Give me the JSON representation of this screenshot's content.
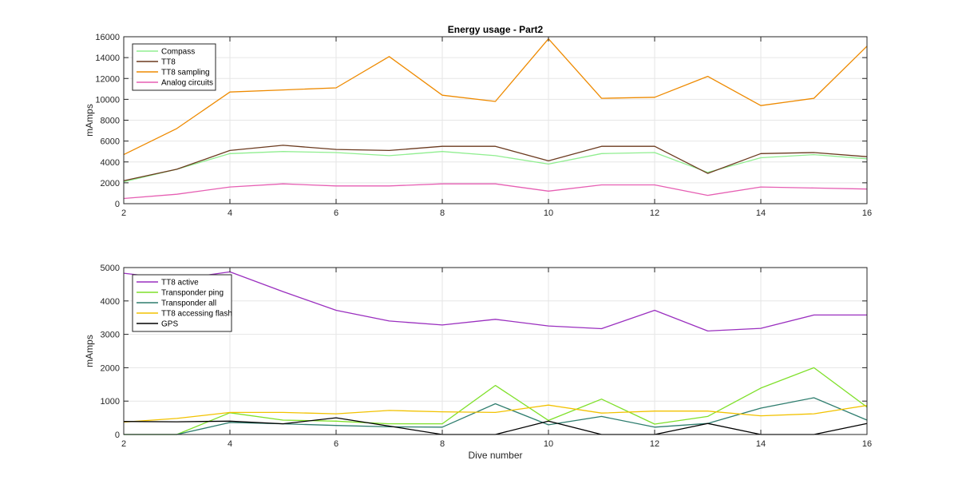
{
  "chart_data": [
    {
      "type": "line",
      "title": "Energy usage - Part2",
      "xlabel": "",
      "ylabel": "mAmps",
      "xlim": [
        2,
        16
      ],
      "ylim": [
        0,
        16000
      ],
      "xticks": [
        2,
        4,
        6,
        8,
        10,
        12,
        14,
        16
      ],
      "yticks": [
        0,
        2000,
        4000,
        6000,
        8000,
        10000,
        12000,
        14000,
        16000
      ],
      "grid": true,
      "legend_position": "top-left",
      "x": [
        2,
        3,
        4,
        5,
        6,
        7,
        8,
        9,
        10,
        11,
        12,
        13,
        14,
        15,
        16
      ],
      "series": [
        {
          "name": "Compass",
          "color": "#90ee90",
          "values": [
            2100,
            3300,
            4800,
            5000,
            4900,
            4600,
            5000,
            4600,
            3800,
            4800,
            4900,
            3000,
            4400,
            4700,
            4300
          ]
        },
        {
          "name": "TT8",
          "color": "#6b3a1f",
          "values": [
            2200,
            3300,
            5100,
            5600,
            5200,
            5100,
            5500,
            5500,
            4100,
            5500,
            5500,
            2900,
            4800,
            4900,
            4500
          ]
        },
        {
          "name": "TT8 sampling",
          "color": "#ee8a00",
          "values": [
            4700,
            7200,
            10700,
            10900,
            11100,
            14100,
            10400,
            9800,
            15800,
            10100,
            10200,
            12200,
            9400,
            10100,
            15100
          ]
        },
        {
          "name": "Analog circuits",
          "color": "#e65fb3",
          "values": [
            500,
            900,
            1600,
            1900,
            1700,
            1700,
            1900,
            1900,
            1200,
            1800,
            1800,
            800,
            1600,
            1500,
            1400
          ]
        }
      ]
    },
    {
      "type": "line",
      "title": "",
      "xlabel": "Dive number",
      "ylabel": "mAmps",
      "xlim": [
        2,
        16
      ],
      "ylim": [
        0,
        5000
      ],
      "xticks": [
        2,
        4,
        6,
        8,
        10,
        12,
        14,
        16
      ],
      "yticks": [
        0,
        1000,
        2000,
        3000,
        4000,
        5000
      ],
      "grid": true,
      "legend_position": "top-left",
      "x": [
        2,
        3,
        4,
        5,
        6,
        7,
        8,
        9,
        10,
        11,
        12,
        13,
        14,
        15,
        16
      ],
      "series": [
        {
          "name": "TT8 active",
          "color": "#9a2fbf",
          "values": [
            4830,
            4650,
            4870,
            4280,
            3720,
            3400,
            3280,
            3450,
            3250,
            3170,
            3720,
            3100,
            3180,
            3580,
            3580
          ]
        },
        {
          "name": "Transponder ping",
          "color": "#7fe02a",
          "values": [
            0,
            0,
            650,
            430,
            400,
            320,
            320,
            1470,
            420,
            1060,
            310,
            540,
            1390,
            2000,
            820
          ]
        },
        {
          "name": "Transponder all",
          "color": "#2e7d6e",
          "values": [
            0,
            0,
            360,
            320,
            270,
            230,
            220,
            920,
            290,
            540,
            220,
            330,
            790,
            1100,
            430
          ]
        },
        {
          "name": "TT8 accessing flash",
          "color": "#f2c200",
          "values": [
            370,
            480,
            660,
            660,
            620,
            720,
            680,
            660,
            880,
            640,
            700,
            700,
            560,
            620,
            870
          ]
        },
        {
          "name": "GPS",
          "color": "#000000",
          "values": [
            390,
            380,
            400,
            320,
            500,
            250,
            0,
            0,
            400,
            0,
            0,
            330,
            0,
            0,
            330
          ]
        }
      ]
    }
  ]
}
